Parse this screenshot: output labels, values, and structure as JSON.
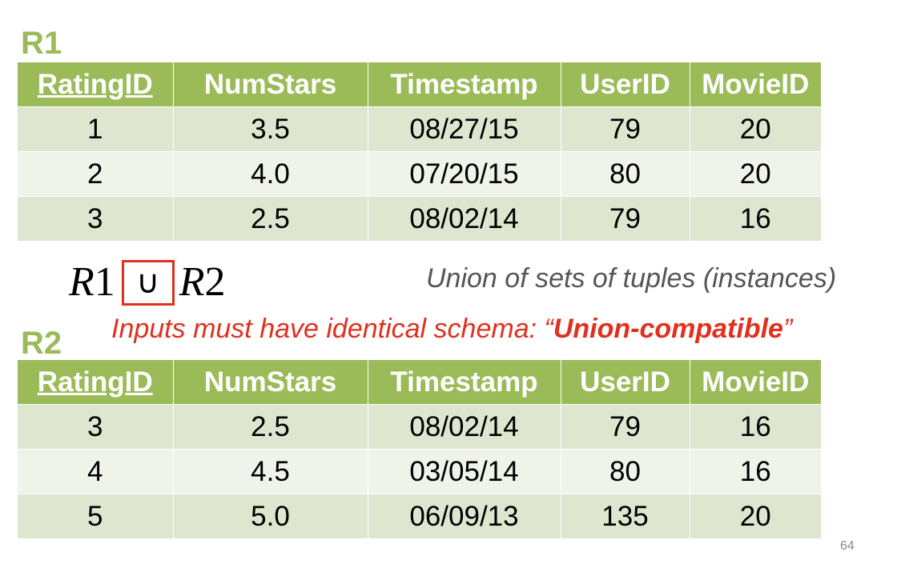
{
  "r1": {
    "label": "R1",
    "columns": [
      "RatingID",
      "NumStars",
      "Timestamp",
      "UserID",
      "MovieID"
    ],
    "key_column": "RatingID",
    "rows": [
      [
        "1",
        "3.5",
        "08/27/15",
        "79",
        "20"
      ],
      [
        "2",
        "4.0",
        "07/20/15",
        "80",
        "20"
      ],
      [
        "3",
        "2.5",
        "08/02/14",
        "79",
        "16"
      ]
    ]
  },
  "r2": {
    "label": "R2",
    "columns": [
      "RatingID",
      "NumStars",
      "Timestamp",
      "UserID",
      "MovieID"
    ],
    "key_column": "RatingID",
    "rows": [
      [
        "3",
        "2.5",
        "08/02/14",
        "79",
        "16"
      ],
      [
        "4",
        "4.5",
        "03/05/14",
        "80",
        "16"
      ],
      [
        "5",
        "5.0",
        "06/09/13",
        "135",
        "20"
      ]
    ]
  },
  "expression": {
    "left_name": "R",
    "left_num": "1",
    "operator": "∪",
    "right_name": "R",
    "right_num": "2"
  },
  "captions": {
    "union": "Union of sets of tuples (instances)",
    "compat_prefix": "Inputs must have identical schema: “",
    "compat_strong": "Union-compatible",
    "compat_suffix": "”"
  },
  "page_number": "64",
  "colors": {
    "header_green": "#9bbb59",
    "row_dark": "#dee6d0",
    "row_light": "#eff3e9",
    "highlight_red": "#e0301e",
    "caption_gray": "#555555"
  }
}
